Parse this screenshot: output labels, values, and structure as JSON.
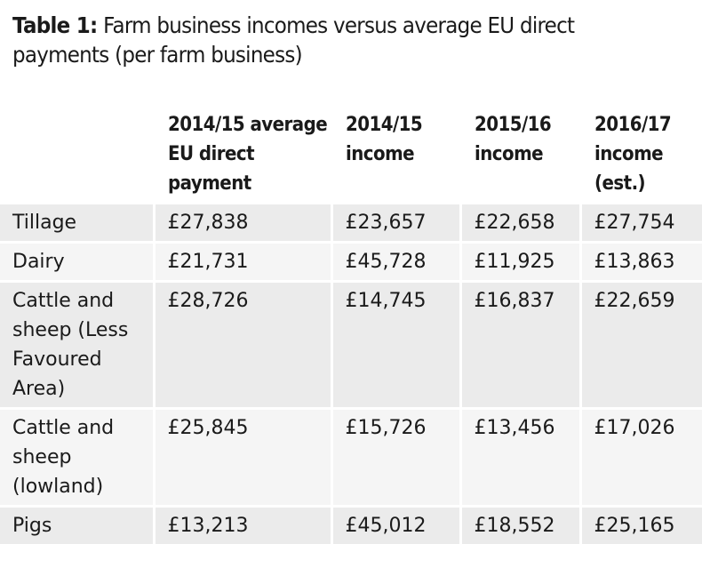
{
  "title": {
    "label": "Table 1:",
    "text": "Farm business incomes versus average EU direct payments (per farm business)"
  },
  "table": {
    "headers": [
      "",
      "2014/15 average EU direct payment",
      "2014/15 income",
      "2015/16 income",
      "2016/17 income (est.)"
    ],
    "rows": [
      [
        "Tillage",
        "£27,838",
        "£23,657",
        "£22,658",
        "£27,754"
      ],
      [
        "Dairy",
        "£21,731",
        "£45,728",
        "£11,925",
        "£13,863"
      ],
      [
        "Cattle and sheep (Less Favoured Area)",
        "£28,726",
        "£14,745",
        "£16,837",
        "£22,659"
      ],
      [
        "Cattle and sheep (lowland)",
        "£25,845",
        "£15,726",
        "£13,456",
        "£17,026"
      ],
      [
        "Pigs",
        "£13,213",
        "£45,012",
        "£18,552",
        "£25,165"
      ]
    ]
  }
}
